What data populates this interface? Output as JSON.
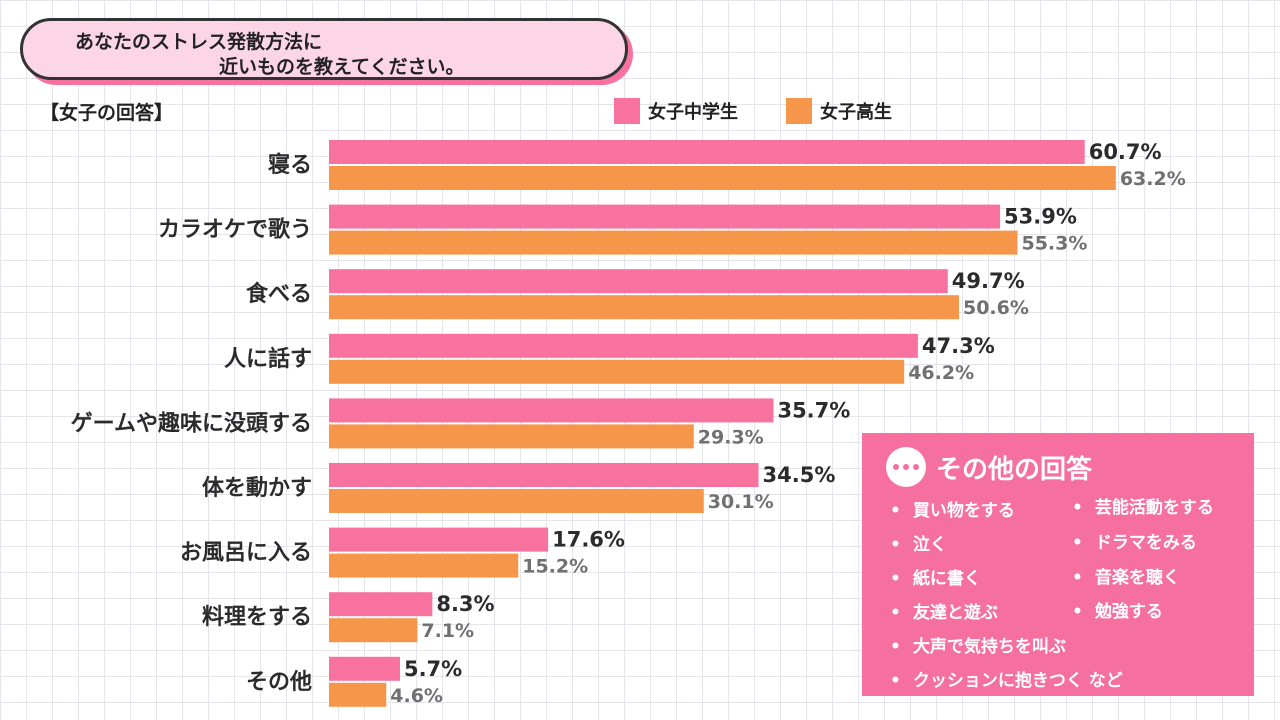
{
  "question": {
    "line1": "あなたのストレス発散方法に",
    "line2": "近いものを教えてください。"
  },
  "subheading": "【女子の回答】",
  "colors": {
    "series_a": "#f7729f",
    "series_b": "#f5964a",
    "other_box": "#f6709f"
  },
  "chart_data": {
    "type": "bar",
    "orientation": "horizontal",
    "categories": [
      "寝る",
      "カラオケで歌う",
      "食べる",
      "人に話す",
      "ゲームや趣味に没頭する",
      "体を動かす",
      "お風呂に入る",
      "料理をする",
      "その他"
    ],
    "series": [
      {
        "name": "女子中学生",
        "values": [
          60.7,
          53.9,
          49.7,
          47.3,
          35.7,
          34.5,
          17.6,
          8.3,
          5.7
        ],
        "labels": [
          "60.7%",
          "53.9%",
          "49.7%",
          "47.3%",
          "35.7%",
          "34.5%",
          "17.6%",
          "8.3%",
          "5.7%"
        ]
      },
      {
        "name": "女子高生",
        "values": [
          63.2,
          55.3,
          50.6,
          46.2,
          29.3,
          30.1,
          15.2,
          7.1,
          4.6
        ],
        "labels": [
          "63.2%",
          "55.3%",
          "50.6%",
          "46.2%",
          "29.3%",
          "30.1%",
          "15.2%",
          "7.1%",
          "4.6%"
        ]
      }
    ],
    "legend_position": "top-right",
    "grid": true
  },
  "other_answers": {
    "title": "その他の回答",
    "icon": "ellipsis-icon",
    "left_items": [
      "買い物をする",
      "泣く",
      "紙に書く",
      "友達と遊ぶ"
    ],
    "right_items": [
      "芸能活動をする",
      "ドラマをみる",
      "音楽を聴く",
      "勉強する"
    ],
    "bottom_items": [
      "大声で気持ちを叫ぶ",
      "クッションに抱きつく など"
    ]
  }
}
